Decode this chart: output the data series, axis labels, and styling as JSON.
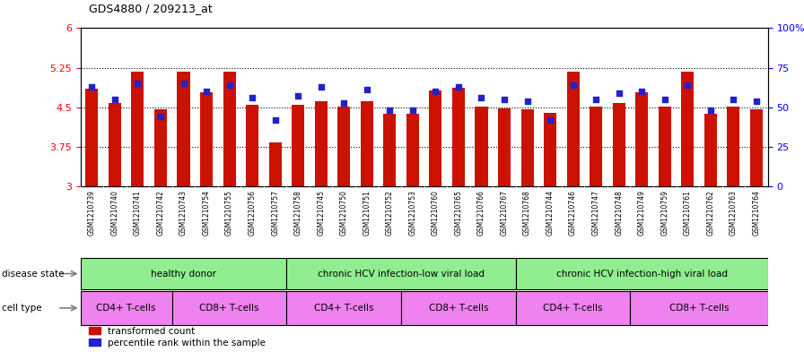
{
  "title": "GDS4880 / 209213_at",
  "samples": [
    "GSM1210739",
    "GSM1210740",
    "GSM1210741",
    "GSM1210742",
    "GSM1210743",
    "GSM1210754",
    "GSM1210755",
    "GSM1210756",
    "GSM1210757",
    "GSM1210758",
    "GSM1210745",
    "GSM1210750",
    "GSM1210751",
    "GSM1210752",
    "GSM1210753",
    "GSM1210760",
    "GSM1210765",
    "GSM1210766",
    "GSM1210767",
    "GSM1210768",
    "GSM1210744",
    "GSM1210746",
    "GSM1210747",
    "GSM1210748",
    "GSM1210749",
    "GSM1210759",
    "GSM1210761",
    "GSM1210762",
    "GSM1210763",
    "GSM1210764"
  ],
  "bar_values": [
    4.85,
    4.58,
    5.18,
    4.47,
    5.17,
    4.78,
    5.17,
    4.55,
    3.83,
    4.55,
    4.62,
    4.51,
    4.62,
    4.38,
    4.38,
    4.82,
    4.87,
    4.52,
    4.48,
    4.47,
    4.39,
    5.17,
    4.52,
    4.58,
    4.78,
    4.52,
    5.17,
    4.38,
    4.52,
    4.47
  ],
  "percentile_values": [
    63,
    55,
    65,
    44,
    65,
    60,
    64,
    56,
    42,
    57,
    63,
    53,
    61,
    48,
    48,
    60,
    63,
    56,
    55,
    54,
    42,
    64,
    55,
    59,
    60,
    55,
    64,
    48,
    55,
    54
  ],
  "ylim_left": [
    3,
    6
  ],
  "ylim_right": [
    0,
    100
  ],
  "yticks_left": [
    3,
    3.75,
    4.5,
    5.25,
    6
  ],
  "yticks_right": [
    0,
    25,
    50,
    75,
    100
  ],
  "ytick_labels_right": [
    "0",
    "25",
    "50",
    "75",
    "100%"
  ],
  "bar_color": "#CC1100",
  "dot_color": "#2222CC",
  "bar_width": 0.55,
  "disease_groups": [
    {
      "label": "healthy donor",
      "start": 0,
      "end": 9,
      "color": "#90EE90"
    },
    {
      "label": "chronic HCV infection-low viral load",
      "start": 9,
      "end": 19,
      "color": "#90EE90"
    },
    {
      "label": "chronic HCV infection-high viral load",
      "start": 19,
      "end": 30,
      "color": "#90EE90"
    }
  ],
  "cell_type_groups": [
    {
      "label": "CD4+ T-cells",
      "start": 0,
      "end": 4,
      "color": "#EE82EE"
    },
    {
      "label": "CD8+ T-cells",
      "start": 4,
      "end": 9,
      "color": "#EE82EE"
    },
    {
      "label": "CD4+ T-cells",
      "start": 9,
      "end": 14,
      "color": "#EE82EE"
    },
    {
      "label": "CD8+ T-cells",
      "start": 14,
      "end": 19,
      "color": "#EE82EE"
    },
    {
      "label": "CD4+ T-cells",
      "start": 19,
      "end": 24,
      "color": "#EE82EE"
    },
    {
      "label": "CD8+ T-cells",
      "start": 24,
      "end": 30,
      "color": "#EE82EE"
    }
  ],
  "xtick_bg": "#cccccc",
  "plot_bg": "#ffffff"
}
